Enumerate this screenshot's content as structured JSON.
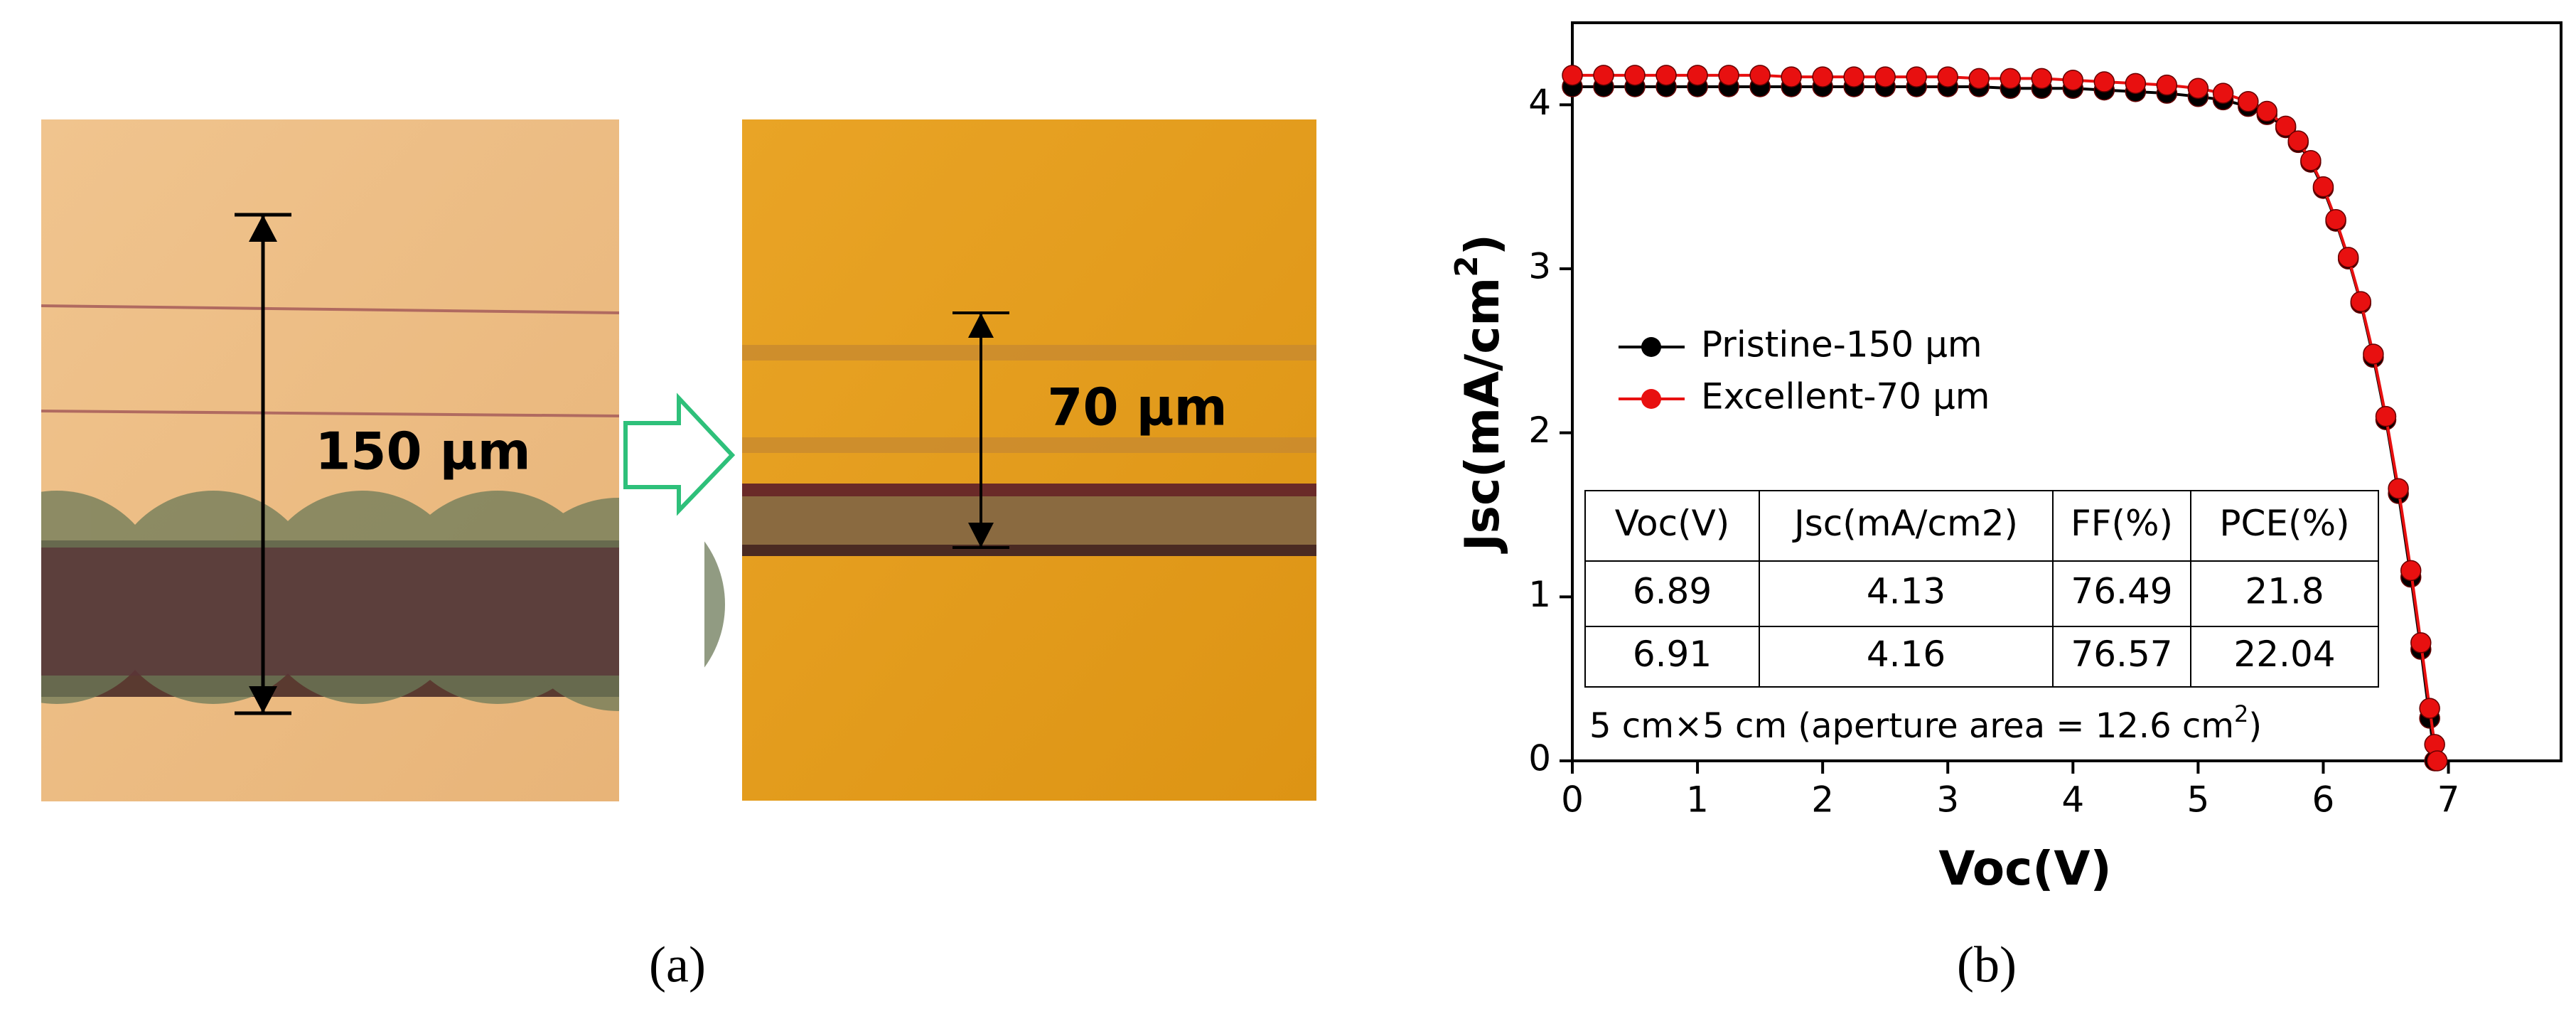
{
  "panel_a": {
    "label": "(a)",
    "annotations": [
      "150 µm",
      "70 µm"
    ]
  },
  "chart_data": {
    "type": "line",
    "panel_label": "(b)",
    "x_label": "Voc(V)",
    "y_label": {
      "text": "Jsc(mA/cm",
      "superscript": "2",
      "suffix": ")"
    },
    "xlim": [
      0,
      7.9
    ],
    "xticks": [
      0,
      1,
      2,
      3,
      4,
      5,
      6,
      7
    ],
    "ylim": [
      0,
      4.5
    ],
    "yticks": [
      0,
      1,
      2,
      3,
      4
    ],
    "legend": "center-left",
    "series": [
      {
        "name": "Pristine-150 µm",
        "color": "#000000",
        "x": [
          0,
          0.25,
          0.5,
          0.75,
          1,
          1.25,
          1.5,
          1.75,
          2,
          2.25,
          2.5,
          2.75,
          3,
          3.25,
          3.5,
          3.75,
          4,
          4.25,
          4.5,
          4.75,
          5,
          5.2,
          5.4,
          5.55,
          5.7,
          5.8,
          5.9,
          6.0,
          6.1,
          6.2,
          6.3,
          6.4,
          6.5,
          6.6,
          6.7,
          6.78,
          6.85,
          6.89
        ],
        "values": [
          4.11,
          4.11,
          4.11,
          4.11,
          4.11,
          4.11,
          4.11,
          4.11,
          4.11,
          4.11,
          4.11,
          4.11,
          4.11,
          4.11,
          4.1,
          4.1,
          4.1,
          4.09,
          4.08,
          4.07,
          4.05,
          4.03,
          3.99,
          3.94,
          3.86,
          3.77,
          3.65,
          3.49,
          3.29,
          3.06,
          2.79,
          2.46,
          2.08,
          1.63,
          1.12,
          0.68,
          0.26,
          0
        ]
      },
      {
        "name": "Excellent-70 µm",
        "color": "#e81010",
        "x": [
          0,
          0.25,
          0.5,
          0.75,
          1,
          1.25,
          1.5,
          1.75,
          2,
          2.25,
          2.5,
          2.75,
          3,
          3.25,
          3.5,
          3.75,
          4,
          4.25,
          4.5,
          4.75,
          5,
          5.2,
          5.4,
          5.55,
          5.7,
          5.8,
          5.9,
          6.0,
          6.1,
          6.2,
          6.3,
          6.4,
          6.5,
          6.6,
          6.7,
          6.78,
          6.85,
          6.89,
          6.91
        ],
        "values": [
          4.18,
          4.18,
          4.18,
          4.18,
          4.18,
          4.18,
          4.18,
          4.17,
          4.17,
          4.17,
          4.17,
          4.17,
          4.17,
          4.16,
          4.16,
          4.16,
          4.15,
          4.14,
          4.13,
          4.12,
          4.1,
          4.07,
          4.02,
          3.96,
          3.87,
          3.78,
          3.66,
          3.5,
          3.3,
          3.07,
          2.8,
          2.48,
          2.1,
          1.66,
          1.16,
          0.72,
          0.32,
          0.1,
          0
        ]
      }
    ],
    "table": {
      "header": [
        "Voc(V)",
        "Jsc(mA/cm2)",
        "FF(%)",
        "PCE(%)"
      ],
      "rows": [
        [
          6.89,
          4.13,
          76.49,
          21.8
        ],
        [
          6.91,
          4.16,
          76.57,
          22.04
        ]
      ]
    },
    "note": {
      "text": "5 cm×5 cm (aperture area = 12.6 cm",
      "superscript": "2",
      "suffix": ")"
    }
  }
}
